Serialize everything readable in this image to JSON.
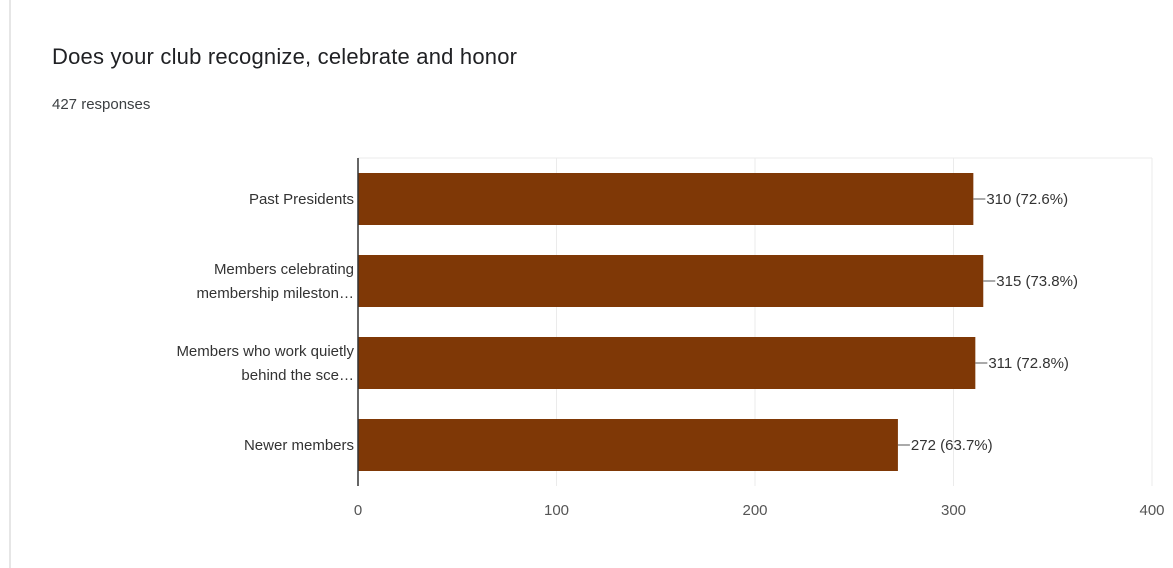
{
  "question": {
    "title": "Does your club recognize, celebrate and honor",
    "responses": "427 responses"
  },
  "colors": {
    "bar": "#7f3806",
    "grid": "#ebebeb",
    "axis": "#333333"
  },
  "chart_data": {
    "type": "bar",
    "orientation": "horizontal",
    "categories": [
      [
        "Past Presidents"
      ],
      [
        "Members celebrating",
        "membership mileston…"
      ],
      [
        "Members who work quietly",
        "behind the sce…"
      ],
      [
        "Newer members"
      ]
    ],
    "values": [
      310,
      315,
      311,
      272
    ],
    "value_labels": [
      "310 (72.6%)",
      "315 (73.8%)",
      "311 (72.8%)",
      "272 (63.7%)"
    ],
    "xlim": [
      0,
      400
    ],
    "xticks": [
      0,
      100,
      200,
      300,
      400
    ],
    "grid": true
  }
}
